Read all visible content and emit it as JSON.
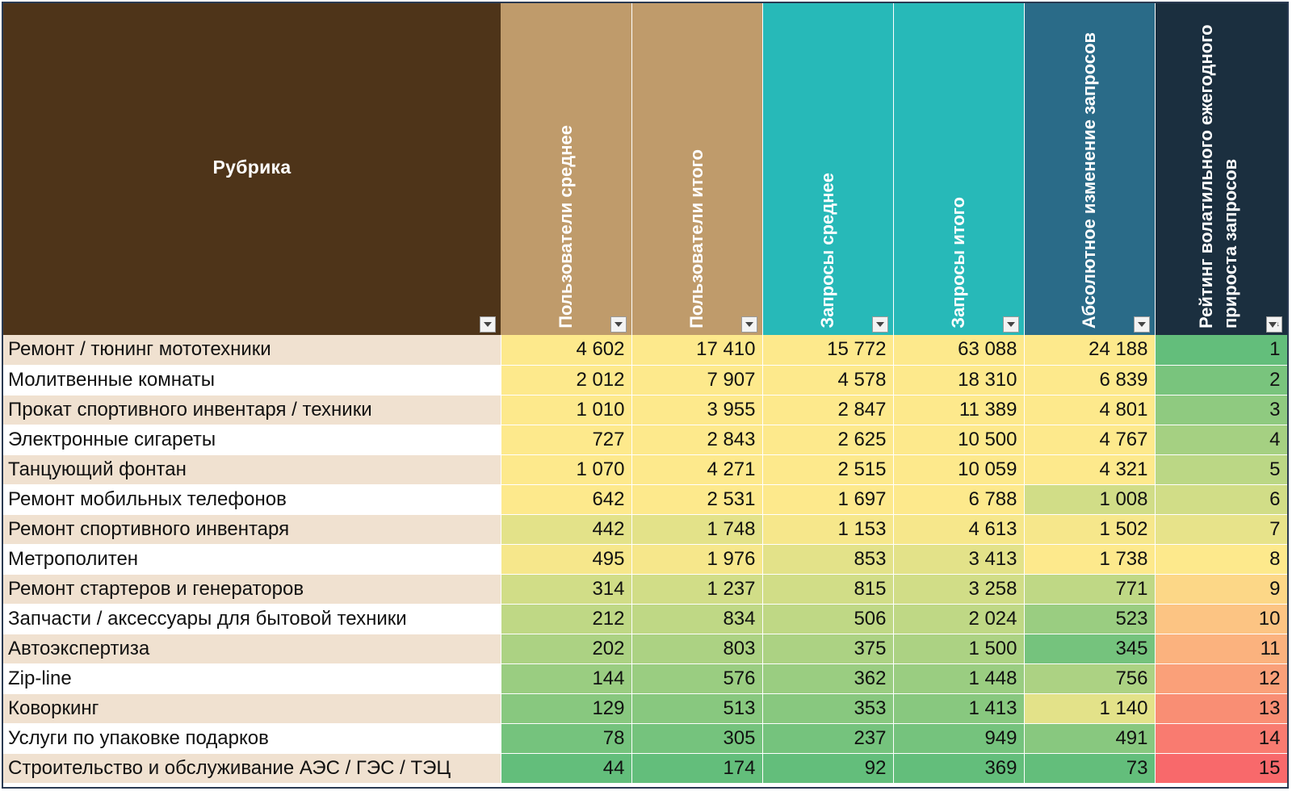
{
  "header": {
    "rubric": "Рубрика",
    "users_avg": "Пользователи среднее",
    "users_total": "Пользователи итого",
    "queries_avg": "Запросы среднее",
    "queries_total": "Запросы итого",
    "abs_change": "Абсолютное изменение запросов",
    "rating": "Рейтинг волатильного ежегодного прироста запросов"
  },
  "icons": {
    "filter": "dropdown-filter-icon",
    "filter_active": "filter-funnel-icon"
  },
  "colors": {
    "header_rubric": "#4e3419",
    "header_users": "#bf9b6b",
    "header_queries": "#27b9b8",
    "header_change": "#2a6b88",
    "header_rating": "#1b2f3f",
    "row_band": "#f0e1d0",
    "scale_yellow": "#fde98c",
    "scale_green": "#63be7b",
    "scale_red": "#f8696b"
  },
  "rows": [
    {
      "name": "Ремонт / тюнинг мототехники",
      "users_avg": "4 602",
      "users_total": "17 410",
      "queries_avg": "15 772",
      "queries_total": "63 088",
      "abs_change": "24 188",
      "rating": "1"
    },
    {
      "name": "Молитвенные комнаты",
      "users_avg": "2 012",
      "users_total": "7 907",
      "queries_avg": "4 578",
      "queries_total": "18 310",
      "abs_change": "6 839",
      "rating": "2"
    },
    {
      "name": "Прокат спортивного инвентаря / техники",
      "users_avg": "1 010",
      "users_total": "3 955",
      "queries_avg": "2 847",
      "queries_total": "11 389",
      "abs_change": "4 801",
      "rating": "3"
    },
    {
      "name": "Электронные сигареты",
      "users_avg": "727",
      "users_total": "2 843",
      "queries_avg": "2 625",
      "queries_total": "10 500",
      "abs_change": "4 767",
      "rating": "4"
    },
    {
      "name": "Танцующий фонтан",
      "users_avg": "1 070",
      "users_total": "4 271",
      "queries_avg": "2 515",
      "queries_total": "10 059",
      "abs_change": "4 321",
      "rating": "5"
    },
    {
      "name": "Ремонт мобильных телефонов",
      "users_avg": "642",
      "users_total": "2 531",
      "queries_avg": "1 697",
      "queries_total": "6 788",
      "abs_change": "1 008",
      "rating": "6"
    },
    {
      "name": "Ремонт спортивного инвентаря",
      "users_avg": "442",
      "users_total": "1 748",
      "queries_avg": "1 153",
      "queries_total": "4 613",
      "abs_change": "1 502",
      "rating": "7"
    },
    {
      "name": "Метрополитен",
      "users_avg": "495",
      "users_total": "1 976",
      "queries_avg": "853",
      "queries_total": "3 413",
      "abs_change": "1 738",
      "rating": "8"
    },
    {
      "name": "Ремонт стартеров и генераторов",
      "users_avg": "314",
      "users_total": "1 237",
      "queries_avg": "815",
      "queries_total": "3 258",
      "abs_change": "771",
      "rating": "9"
    },
    {
      "name": "Запчасти / аксессуары для бытовой техники",
      "users_avg": "212",
      "users_total": "834",
      "queries_avg": "506",
      "queries_total": "2 024",
      "abs_change": "523",
      "rating": "10"
    },
    {
      "name": "Автоэкспертиза",
      "users_avg": "202",
      "users_total": "803",
      "queries_avg": "375",
      "queries_total": "1 500",
      "abs_change": "345",
      "rating": "11"
    },
    {
      "name": "Zip-line",
      "users_avg": "144",
      "users_total": "576",
      "queries_avg": "362",
      "queries_total": "1 448",
      "abs_change": "756",
      "rating": "12"
    },
    {
      "name": "Коворкинг",
      "users_avg": "129",
      "users_total": "513",
      "queries_avg": "353",
      "queries_total": "1 413",
      "abs_change": "1 140",
      "rating": "13"
    },
    {
      "name": "Услуги по упаковке подарков",
      "users_avg": "78",
      "users_total": "305",
      "queries_avg": "237",
      "queries_total": "949",
      "abs_change": "491",
      "rating": "14"
    },
    {
      "name": "Строительство и обслуживание АЭС / ГЭС / ТЭЦ",
      "users_avg": "44",
      "users_total": "174",
      "queries_avg": "92",
      "queries_total": "369",
      "abs_change": "73",
      "rating": "15"
    }
  ]
}
